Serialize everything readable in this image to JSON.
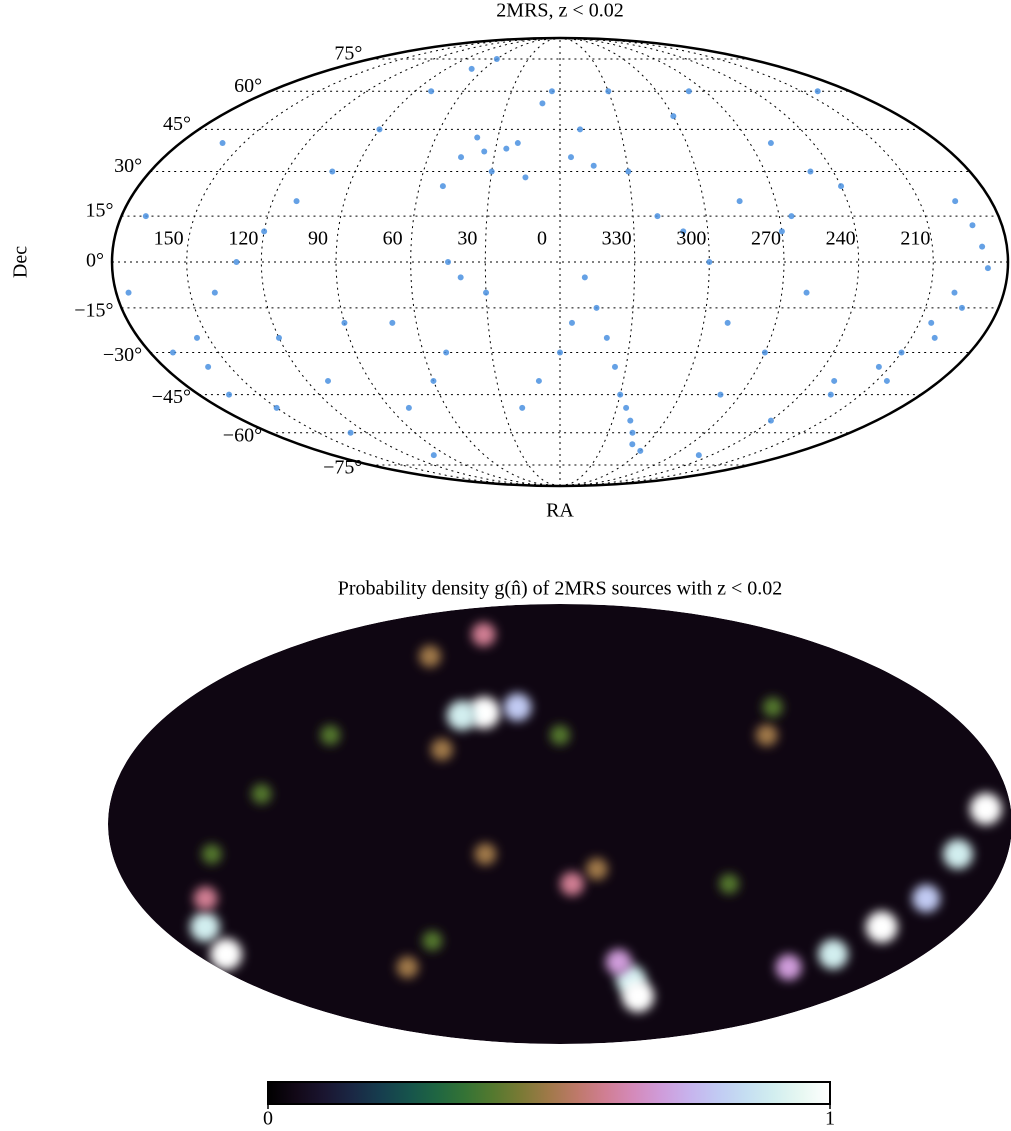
{
  "chart_data": [
    {
      "type": "scatter",
      "projection": "mollweide",
      "title": "2MRS, z < 0.02",
      "xlabel": "RA",
      "ylabel": "Dec",
      "color": "#4a90e0",
      "grid": true,
      "xticks": [
        150,
        120,
        90,
        60,
        30,
        0,
        330,
        300,
        270,
        240,
        210
      ],
      "yticks": [
        {
          "value": 75,
          "label": "75°"
        },
        {
          "value": 60,
          "label": "60°"
        },
        {
          "value": 45,
          "label": "45°"
        },
        {
          "value": 30,
          "label": "30°"
        },
        {
          "value": 15,
          "label": "15°"
        },
        {
          "value": 0,
          "label": "0°"
        },
        {
          "value": -15,
          "label": "−15°"
        },
        {
          "value": -30,
          "label": "−30°"
        },
        {
          "value": -45,
          "label": "−45°"
        },
        {
          "value": -60,
          "label": "−60°"
        },
        {
          "value": -75,
          "label": "−75°"
        }
      ],
      "x": [
        190,
        192,
        188,
        195,
        200,
        205,
        210,
        215,
        205,
        225,
        230,
        200,
        195,
        240,
        250,
        260,
        265,
        270,
        285,
        240,
        20,
        25,
        35,
        40,
        45,
        30,
        15,
        50,
        355,
        345,
        330,
        350,
        10,
        5,
        330,
        300,
        320,
        315,
        325,
        330,
        310,
        300,
        335,
        340,
        345,
        350,
        355,
        0,
        10,
        20,
        30,
        40,
        45,
        50,
        60,
        70,
        160,
        165,
        170,
        155,
        150,
        140,
        130,
        120,
        110,
        100,
        90,
        80,
        70,
        60,
        160,
        170,
        175,
        130,
        100,
        80,
        90,
        110,
        120,
        270,
        280,
        260,
        290,
        300,
        310,
        320,
        280,
        250,
        200
      ],
      "y": [
        5,
        12,
        -2,
        20,
        -10,
        -20,
        -30,
        -35,
        -40,
        -45,
        -40,
        -25,
        -15,
        -55,
        30,
        40,
        15,
        10,
        20,
        25,
        40,
        38,
        37,
        42,
        35,
        30,
        28,
        25,
        35,
        32,
        30,
        45,
        55,
        60,
        60,
        50,
        -55,
        -60,
        -50,
        -45,
        -65,
        -68,
        -35,
        -25,
        -15,
        -5,
        -20,
        -30,
        -40,
        -50,
        -10,
        -5,
        0,
        -30,
        -40,
        -20,
        -35,
        -45,
        -30,
        -25,
        -50,
        -10,
        0,
        10,
        20,
        30,
        45,
        60,
        70,
        75,
        40,
        15,
        -10,
        -60,
        -70,
        -50,
        -20,
        -40,
        -25,
        -30,
        -45,
        -10,
        -20,
        0,
        10,
        15,
        60,
        -70,
        60
      ]
    },
    {
      "type": "heatmap",
      "projection": "mollweide",
      "title": "Probability density g(n̂) of 2MRS sources with z < 0.02",
      "colormap": "cubehelix",
      "clim": [
        0,
        1
      ],
      "cticks": [
        0,
        1
      ],
      "x": [
        190,
        200,
        215,
        205,
        225,
        240,
        35,
        45,
        20,
        320,
        310,
        330,
        345,
        355,
        30,
        160,
        165,
        150,
        50,
        0,
        60,
        80,
        270,
        100,
        120,
        140,
        80,
        60,
        290,
        260
      ],
      "y": [
        5,
        -10,
        -35,
        -25,
        -45,
        -50,
        38,
        37,
        40,
        -55,
        -62,
        -48,
        -15,
        -20,
        -10,
        -35,
        -45,
        -25,
        25,
        30,
        70,
        60,
        30,
        30,
        10,
        -10,
        -50,
        -40,
        -20,
        40
      ],
      "values": [
        1,
        0.9,
        1,
        0.8,
        0.9,
        0.7,
        1,
        0.9,
        0.8,
        0.9,
        1,
        0.7,
        0.5,
        0.6,
        0.5,
        0.9,
        1,
        0.6,
        0.5,
        0.4,
        0.6,
        0.5,
        0.5,
        0.4,
        0.4,
        0.4,
        0.5,
        0.4,
        0.4,
        0.4
      ]
    }
  ]
}
